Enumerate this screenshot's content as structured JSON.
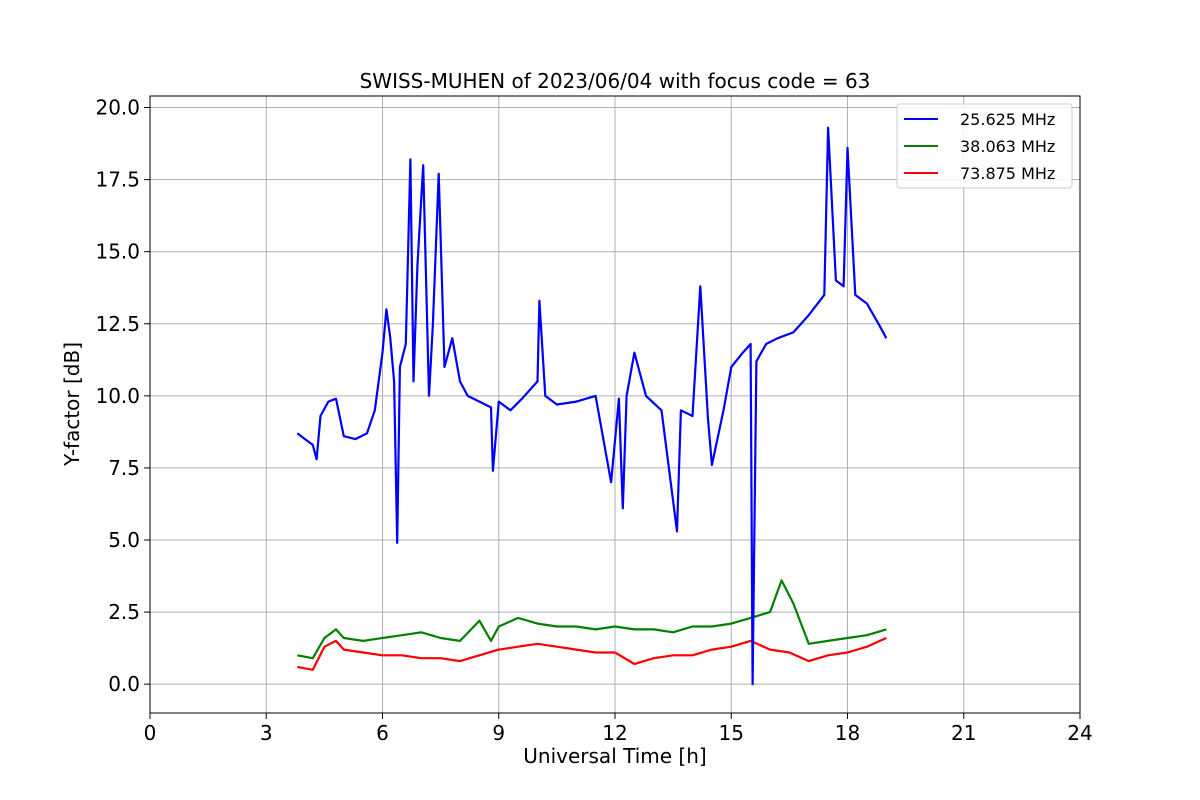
{
  "chart_data": {
    "type": "line",
    "title": "SWISS-MUHEN of 2023/06/04 with focus code = 63",
    "xlabel": "Universal Time [h]",
    "ylabel": "Y-factor [dB]",
    "xlim": [
      0,
      24
    ],
    "ylim": [
      -1.0,
      20.4
    ],
    "xticks": [
      0,
      3,
      6,
      9,
      12,
      15,
      18,
      21,
      24
    ],
    "xtick_labels": [
      "0",
      "3",
      "6",
      "9",
      "12",
      "15",
      "18",
      "21",
      "24"
    ],
    "yticks": [
      0,
      2.5,
      5,
      7.5,
      10,
      12.5,
      15,
      17.5,
      20
    ],
    "ytick_labels": [
      "0.0",
      "2.5",
      "5.0",
      "7.5",
      "10.0",
      "12.5",
      "15.0",
      "17.5",
      "20.0"
    ],
    "grid": true,
    "legend_position": "top-right",
    "colors": {
      "blue": "#0000ff",
      "green": "#008000",
      "red": "#ff0000",
      "grid": "#b0b0b0"
    },
    "series": [
      {
        "name": "25.625 MHz",
        "color": "#0000ff",
        "points": [
          [
            3.8,
            8.7
          ],
          [
            4.0,
            8.5
          ],
          [
            4.2,
            8.3
          ],
          [
            4.3,
            7.8
          ],
          [
            4.4,
            9.3
          ],
          [
            4.6,
            9.8
          ],
          [
            4.8,
            9.9
          ],
          [
            5.0,
            8.6
          ],
          [
            5.3,
            8.5
          ],
          [
            5.6,
            8.7
          ],
          [
            5.8,
            9.5
          ],
          [
            6.0,
            11.5
          ],
          [
            6.1,
            13.0
          ],
          [
            6.2,
            12.0
          ],
          [
            6.3,
            10.5
          ],
          [
            6.38,
            4.9
          ],
          [
            6.45,
            11.0
          ],
          [
            6.6,
            11.8
          ],
          [
            6.72,
            18.2
          ],
          [
            6.8,
            10.5
          ],
          [
            6.9,
            14.5
          ],
          [
            7.05,
            18.0
          ],
          [
            7.2,
            10.0
          ],
          [
            7.3,
            12.5
          ],
          [
            7.45,
            17.7
          ],
          [
            7.6,
            11.0
          ],
          [
            7.8,
            12.0
          ],
          [
            8.0,
            10.5
          ],
          [
            8.2,
            10.0
          ],
          [
            8.5,
            9.8
          ],
          [
            8.8,
            9.6
          ],
          [
            8.85,
            7.4
          ],
          [
            9.0,
            9.8
          ],
          [
            9.3,
            9.5
          ],
          [
            9.6,
            9.9
          ],
          [
            10.0,
            10.5
          ],
          [
            10.05,
            13.3
          ],
          [
            10.2,
            10.0
          ],
          [
            10.5,
            9.7
          ],
          [
            11.0,
            9.8
          ],
          [
            11.5,
            10.0
          ],
          [
            11.9,
            7.0
          ],
          [
            12.1,
            9.9
          ],
          [
            12.2,
            6.1
          ],
          [
            12.3,
            10.0
          ],
          [
            12.5,
            11.5
          ],
          [
            12.8,
            10.0
          ],
          [
            13.2,
            9.5
          ],
          [
            13.6,
            5.3
          ],
          [
            13.7,
            9.5
          ],
          [
            14.0,
            9.3
          ],
          [
            14.2,
            13.8
          ],
          [
            14.4,
            9.2
          ],
          [
            14.5,
            7.6
          ],
          [
            14.8,
            9.5
          ],
          [
            15.0,
            11.0
          ],
          [
            15.3,
            11.5
          ],
          [
            15.5,
            11.8
          ],
          [
            15.55,
            0.0
          ],
          [
            15.65,
            11.2
          ],
          [
            15.9,
            11.8
          ],
          [
            16.2,
            12.0
          ],
          [
            16.6,
            12.2
          ],
          [
            17.0,
            12.8
          ],
          [
            17.4,
            13.5
          ],
          [
            17.5,
            19.3
          ],
          [
            17.7,
            14.0
          ],
          [
            17.9,
            13.8
          ],
          [
            18.0,
            18.6
          ],
          [
            18.2,
            13.5
          ],
          [
            18.5,
            13.2
          ],
          [
            18.8,
            12.5
          ],
          [
            19.0,
            12.0
          ]
        ]
      },
      {
        "name": "38.063 MHz",
        "color": "#008000",
        "points": [
          [
            3.8,
            1.0
          ],
          [
            4.2,
            0.9
          ],
          [
            4.5,
            1.6
          ],
          [
            4.8,
            1.9
          ],
          [
            5.0,
            1.6
          ],
          [
            5.5,
            1.5
          ],
          [
            6.0,
            1.6
          ],
          [
            6.5,
            1.7
          ],
          [
            7.0,
            1.8
          ],
          [
            7.5,
            1.6
          ],
          [
            8.0,
            1.5
          ],
          [
            8.5,
            2.2
          ],
          [
            8.8,
            1.5
          ],
          [
            9.0,
            2.0
          ],
          [
            9.5,
            2.3
          ],
          [
            10.0,
            2.1
          ],
          [
            10.5,
            2.0
          ],
          [
            11.0,
            2.0
          ],
          [
            11.5,
            1.9
          ],
          [
            12.0,
            2.0
          ],
          [
            12.5,
            1.9
          ],
          [
            13.0,
            1.9
          ],
          [
            13.5,
            1.8
          ],
          [
            14.0,
            2.0
          ],
          [
            14.5,
            2.0
          ],
          [
            15.0,
            2.1
          ],
          [
            15.5,
            2.3
          ],
          [
            16.0,
            2.5
          ],
          [
            16.3,
            3.6
          ],
          [
            16.6,
            2.8
          ],
          [
            17.0,
            1.4
          ],
          [
            17.5,
            1.5
          ],
          [
            18.0,
            1.6
          ],
          [
            18.5,
            1.7
          ],
          [
            19.0,
            1.9
          ]
        ]
      },
      {
        "name": "73.875 MHz",
        "color": "#ff0000",
        "points": [
          [
            3.8,
            0.6
          ],
          [
            4.2,
            0.5
          ],
          [
            4.5,
            1.3
          ],
          [
            4.8,
            1.5
          ],
          [
            5.0,
            1.2
          ],
          [
            5.5,
            1.1
          ],
          [
            6.0,
            1.0
          ],
          [
            6.5,
            1.0
          ],
          [
            7.0,
            0.9
          ],
          [
            7.5,
            0.9
          ],
          [
            8.0,
            0.8
          ],
          [
            8.5,
            1.0
          ],
          [
            9.0,
            1.2
          ],
          [
            9.5,
            1.3
          ],
          [
            10.0,
            1.4
          ],
          [
            10.5,
            1.3
          ],
          [
            11.0,
            1.2
          ],
          [
            11.5,
            1.1
          ],
          [
            12.0,
            1.1
          ],
          [
            12.5,
            0.7
          ],
          [
            13.0,
            0.9
          ],
          [
            13.5,
            1.0
          ],
          [
            14.0,
            1.0
          ],
          [
            14.5,
            1.2
          ],
          [
            15.0,
            1.3
          ],
          [
            15.5,
            1.5
          ],
          [
            16.0,
            1.2
          ],
          [
            16.5,
            1.1
          ],
          [
            17.0,
            0.8
          ],
          [
            17.5,
            1.0
          ],
          [
            18.0,
            1.1
          ],
          [
            18.5,
            1.3
          ],
          [
            19.0,
            1.6
          ]
        ]
      }
    ]
  }
}
